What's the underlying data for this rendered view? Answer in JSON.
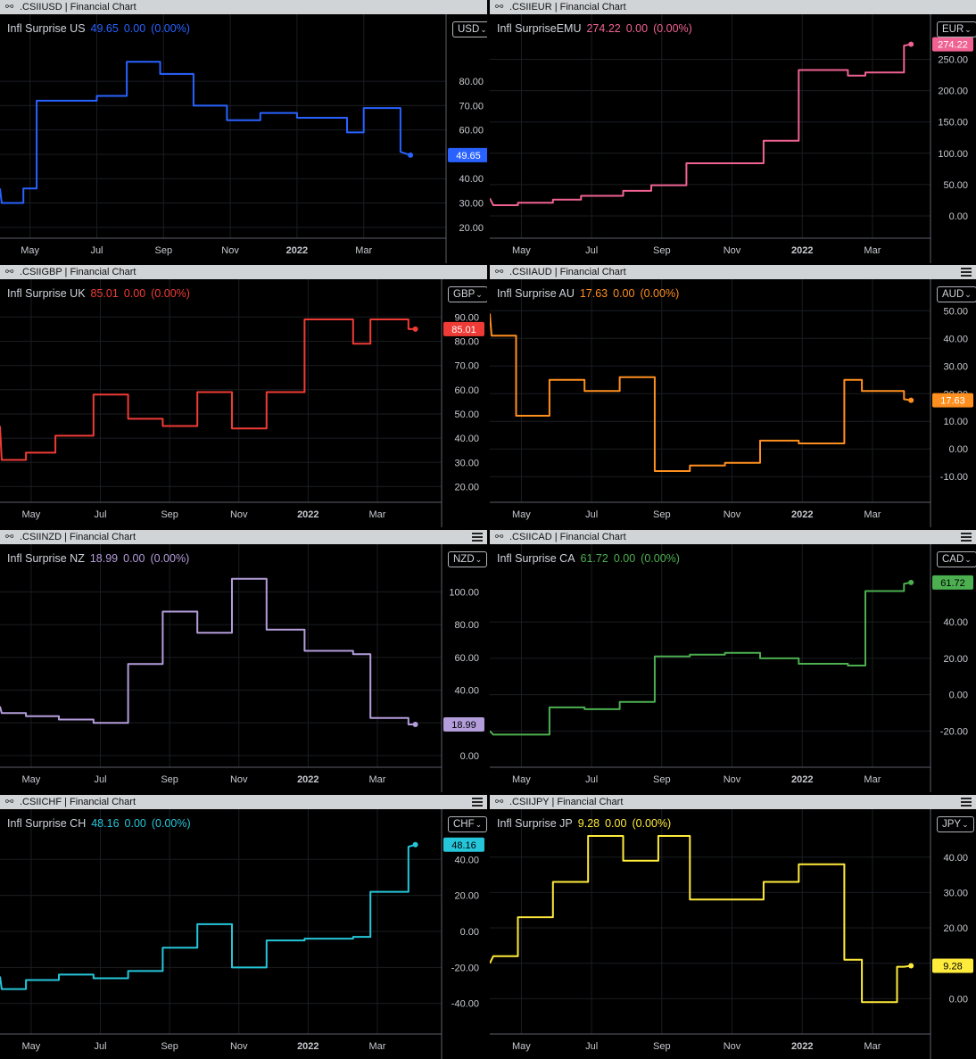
{
  "panels": [
    {
      "id": "usd",
      "title": ".CSIIUSD | Financial Chart",
      "menu": false,
      "legend": {
        "name": "Infl Surprise US",
        "last": "49.65",
        "change": "0.00",
        "pct": "(0.00%)"
      },
      "currency": "USD",
      "color": "#2962ff",
      "badge_text_color": "#ffffff",
      "chart_data": {
        "type": "line",
        "title": "Infl Surprise US",
        "yticks": [
          20,
          30,
          40,
          50,
          60,
          70,
          80
        ],
        "ylim": [
          17,
          98
        ],
        "xticks": [
          {
            "x": 1,
            "label": "May"
          },
          {
            "x": 3,
            "label": "Jul"
          },
          {
            "x": 5,
            "label": "Sep"
          },
          {
            "x": 7,
            "label": "Nov"
          },
          {
            "x": 9,
            "label": "2022"
          },
          {
            "x": 11,
            "label": "Mar"
          }
        ],
        "xlim": [
          0.1,
          13.2
        ],
        "last": 49.65,
        "x": [
          0.1,
          0.15,
          0.8,
          0.8,
          1.2,
          1.2,
          1.9,
          3.0,
          3.0,
          3.9,
          3.9,
          4.9,
          4.9,
          5.9,
          5.9,
          6.9,
          6.9,
          7.9,
          7.9,
          9.0,
          9.0,
          10.5,
          10.5,
          11.0,
          11.0,
          12.1,
          12.1,
          12.4
        ],
        "y": [
          36,
          30,
          30,
          36,
          36,
          72,
          72,
          72,
          74,
          74,
          88,
          88,
          83,
          83,
          70,
          70,
          64,
          64,
          67,
          67,
          65,
          65,
          59,
          59,
          69,
          69,
          51,
          49.65
        ]
      }
    },
    {
      "id": "eur",
      "title": ".CSIIEUR | Financial Chart",
      "menu": false,
      "legend": {
        "name": "Infl SurpriseEMU",
        "last": "274.22",
        "change": "0.00",
        "pct": "(0.00%)"
      },
      "currency": "EUR",
      "color": "#f06292",
      "badge_text_color": "#ffffff",
      "chart_data": {
        "type": "line",
        "title": "Infl SurpriseEMU",
        "yticks": [
          0,
          50,
          100,
          150,
          200,
          250
        ],
        "ylim": [
          -30,
          285
        ],
        "xticks": [
          {
            "x": 1,
            "label": "May"
          },
          {
            "x": 3,
            "label": "Jul"
          },
          {
            "x": 5,
            "label": "Sep"
          },
          {
            "x": 7,
            "label": "Nov"
          },
          {
            "x": 9,
            "label": "2022"
          },
          {
            "x": 11,
            "label": "Mar"
          }
        ],
        "xlim": [
          0.1,
          12.4
        ],
        "last": 274.22,
        "x": [
          0.1,
          0.2,
          0.9,
          0.9,
          1.9,
          1.9,
          2.7,
          2.7,
          3.9,
          3.9,
          4.7,
          4.7,
          5.7,
          5.7,
          7.9,
          7.9,
          8.9,
          8.9,
          10.3,
          10.3,
          10.8,
          10.8,
          11.9,
          11.9,
          12.1
        ],
        "y": [
          28,
          17,
          17,
          21,
          21,
          26,
          26,
          32,
          32,
          40,
          40,
          49,
          49,
          84,
          84,
          120,
          120,
          233,
          233,
          224,
          224,
          229,
          229,
          272,
          274.22
        ]
      }
    },
    {
      "id": "gbp",
      "title": ".CSIIGBP | Financial Chart",
      "menu": false,
      "legend": {
        "name": "Infl Surprise UK",
        "last": "85.01",
        "change": "0.00",
        "pct": "(0.00%)"
      },
      "currency": "GBP",
      "color": "#ef3b36",
      "badge_text_color": "#ffffff",
      "chart_data": {
        "type": "line",
        "title": "Infl Surprise UK",
        "yticks": [
          20,
          30,
          40,
          50,
          60,
          70,
          80,
          90
        ],
        "ylim": [
          15,
          96
        ],
        "xticks": [
          {
            "x": 1,
            "label": "May"
          },
          {
            "x": 3,
            "label": "Jul"
          },
          {
            "x": 5,
            "label": "Sep"
          },
          {
            "x": 7,
            "label": "Nov"
          },
          {
            "x": 9,
            "label": "2022"
          },
          {
            "x": 11,
            "label": "Mar"
          }
        ],
        "xlim": [
          0.1,
          12.6
        ],
        "last": 85.01,
        "x": [
          0.1,
          0.15,
          0.85,
          0.85,
          1.7,
          1.7,
          2.8,
          2.8,
          3.8,
          3.8,
          4.8,
          4.8,
          5.8,
          5.8,
          6.8,
          6.8,
          7.8,
          7.8,
          8.9,
          8.9,
          10.3,
          10.3,
          10.8,
          10.8,
          11.9,
          11.9,
          12.1
        ],
        "y": [
          45,
          31,
          31,
          34,
          34,
          41,
          41,
          58,
          58,
          48,
          48,
          45,
          45,
          59,
          59,
          44,
          44,
          59,
          59,
          89,
          89,
          79,
          79,
          89,
          89,
          85,
          85.01
        ]
      }
    },
    {
      "id": "aud",
      "title": ".CSIIAUD | Financial Chart",
      "menu": true,
      "legend": {
        "name": "Infl Surprise AU",
        "last": "17.63",
        "change": "0.00",
        "pct": "(0.00%)"
      },
      "currency": "AUD",
      "color": "#ff8f1f",
      "badge_text_color": "#ffffff",
      "chart_data": {
        "type": "line",
        "title": "Infl Surprise AU",
        "yticks": [
          -10,
          0,
          10,
          20,
          30,
          40,
          50
        ],
        "ylim": [
          -18,
          53
        ],
        "xticks": [
          {
            "x": 1,
            "label": "May"
          },
          {
            "x": 3,
            "label": "Jul"
          },
          {
            "x": 5,
            "label": "Sep"
          },
          {
            "x": 7,
            "label": "Nov"
          },
          {
            "x": 9,
            "label": "2022"
          },
          {
            "x": 11,
            "label": "Mar"
          }
        ],
        "xlim": [
          0.1,
          12.4
        ],
        "last": 17.63,
        "x": [
          0.1,
          0.15,
          0.85,
          0.85,
          1.8,
          1.8,
          2.8,
          2.8,
          3.8,
          3.8,
          4.8,
          4.8,
          5.8,
          5.8,
          6.8,
          6.8,
          7.8,
          7.8,
          8.9,
          8.9,
          10.2,
          10.2,
          10.7,
          10.7,
          11.9,
          11.9,
          12.1
        ],
        "y": [
          49,
          41,
          41,
          12,
          12,
          25,
          25,
          21,
          21,
          26,
          26,
          -8,
          -8,
          -6,
          -6,
          -5,
          -5,
          3,
          3,
          2,
          2,
          25,
          25,
          21,
          21,
          18,
          17.63
        ]
      }
    },
    {
      "id": "nzd",
      "title": ".CSIINZD | Financial Chart",
      "menu": true,
      "legend": {
        "name": "Infl Surprise NZ",
        "last": "18.99",
        "change": "0.00",
        "pct": "(0.00%)"
      },
      "currency": "NZD",
      "color": "#b39ddb",
      "badge_text_color": "#000000",
      "chart_data": {
        "type": "line",
        "title": "Infl Surprise NZ",
        "yticks": [
          0,
          20,
          40,
          60,
          80,
          100
        ],
        "ylim": [
          -5,
          115
        ],
        "xticks": [
          {
            "x": 1,
            "label": "May"
          },
          {
            "x": 3,
            "label": "Jul"
          },
          {
            "x": 5,
            "label": "Sep"
          },
          {
            "x": 7,
            "label": "Nov"
          },
          {
            "x": 9,
            "label": "2022"
          },
          {
            "x": 11,
            "label": "Mar"
          }
        ],
        "xlim": [
          0.1,
          12.6
        ],
        "last": 18.99,
        "x": [
          0.1,
          0.15,
          0.85,
          0.85,
          1.8,
          1.8,
          2.8,
          2.8,
          3.8,
          3.8,
          4.8,
          4.8,
          5.8,
          5.8,
          6.8,
          6.8,
          7.8,
          7.8,
          8.9,
          8.9,
          10.3,
          10.3,
          10.8,
          10.8,
          11.9,
          11.9,
          12.1
        ],
        "y": [
          30,
          26,
          26,
          24,
          24,
          22,
          22,
          20,
          20,
          56,
          56,
          88,
          88,
          75,
          75,
          108,
          108,
          77,
          77,
          64,
          64,
          62,
          62,
          23,
          23,
          19,
          18.99
        ]
      }
    },
    {
      "id": "cad",
      "title": ".CSIICAD | Financial Chart",
      "menu": true,
      "legend": {
        "name": "Infl Surprise CA",
        "last": "61.72",
        "change": "0.00",
        "pct": "(0.00%)"
      },
      "currency": "CAD",
      "color": "#4caf50",
      "badge_text_color": "#000000",
      "chart_data": {
        "type": "line",
        "title": "Infl Surprise CA",
        "yticks": [
          -20,
          0,
          20,
          40
        ],
        "ylim": [
          -38,
          70
        ],
        "xticks": [
          {
            "x": 1,
            "label": "May"
          },
          {
            "x": 3,
            "label": "Jul"
          },
          {
            "x": 5,
            "label": "Sep"
          },
          {
            "x": 7,
            "label": "Nov"
          },
          {
            "x": 9,
            "label": "2022"
          },
          {
            "x": 11,
            "label": "Mar"
          }
        ],
        "xlim": [
          0.1,
          12.4
        ],
        "last": 61.72,
        "x": [
          0.1,
          0.2,
          1.8,
          1.8,
          2.8,
          2.8,
          3.8,
          3.8,
          4.8,
          4.8,
          5.8,
          5.8,
          6.8,
          6.8,
          7.8,
          7.8,
          8.9,
          8.9,
          10.3,
          10.3,
          10.8,
          10.8,
          11.9,
          11.9,
          12.1
        ],
        "y": [
          -20,
          -22,
          -22,
          -7,
          -7,
          -8,
          -8,
          -4,
          -4,
          21,
          21,
          22,
          22,
          23,
          23,
          20,
          20,
          17,
          17,
          16,
          16,
          57,
          57,
          61,
          61.72
        ]
      }
    },
    {
      "id": "chf",
      "title": ".CSIICHF | Financial Chart",
      "menu": true,
      "legend": {
        "name": "Infl Surprise CH",
        "last": "48.16",
        "change": "0.00",
        "pct": "(0.00%)"
      },
      "currency": "CHF",
      "color": "#26c6da",
      "badge_text_color": "#000000",
      "chart_data": {
        "type": "line",
        "title": "Infl Surprise CH",
        "yticks": [
          -40,
          -20,
          0,
          20,
          40
        ],
        "ylim": [
          -55,
          55
        ],
        "xticks": [
          {
            "x": 1,
            "label": "May"
          },
          {
            "x": 3,
            "label": "Jul"
          },
          {
            "x": 5,
            "label": "Sep"
          },
          {
            "x": 7,
            "label": "Nov"
          },
          {
            "x": 9,
            "label": "2022"
          },
          {
            "x": 11,
            "label": "Mar"
          }
        ],
        "xlim": [
          0.1,
          12.6
        ],
        "last": 48.16,
        "x": [
          0.1,
          0.15,
          0.85,
          0.85,
          1.8,
          1.8,
          2.8,
          2.8,
          3.8,
          3.8,
          4.8,
          4.8,
          5.8,
          5.8,
          6.8,
          6.8,
          7.8,
          7.8,
          8.9,
          8.9,
          10.3,
          10.3,
          10.8,
          10.8,
          11.9,
          11.9,
          12.1
        ],
        "y": [
          -25,
          -32,
          -32,
          -27,
          -27,
          -24,
          -24,
          -26,
          -26,
          -22,
          -22,
          -9,
          -9,
          4,
          4,
          -20,
          -20,
          -5,
          -5,
          -4,
          -4,
          -3,
          -3,
          22,
          22,
          47,
          48.16
        ]
      }
    },
    {
      "id": "jpy",
      "title": ".CSIIJPY | Financial Chart",
      "menu": true,
      "legend": {
        "name": "Infl Surprise JP",
        "last": "9.28",
        "change": "0.00",
        "pct": "(0.00%)"
      },
      "currency": "JPY",
      "color": "#ffeb3b",
      "badge_text_color": "#000000",
      "chart_data": {
        "type": "line",
        "title": "Infl Surprise JP",
        "yticks": [
          0,
          10,
          20,
          30,
          40
        ],
        "ylim": [
          -9,
          47
        ],
        "xticks": [
          {
            "x": 1,
            "label": "May"
          },
          {
            "x": 3,
            "label": "Jul"
          },
          {
            "x": 5,
            "label": "Sep"
          },
          {
            "x": 7,
            "label": "Nov"
          },
          {
            "x": 9,
            "label": "2022"
          },
          {
            "x": 11,
            "label": "Mar"
          }
        ],
        "xlim": [
          0.1,
          12.4
        ],
        "last": 9.28,
        "x": [
          0.1,
          0.2,
          0.9,
          0.9,
          1.9,
          1.9,
          2.9,
          2.9,
          3.9,
          3.9,
          4.9,
          4.9,
          5.8,
          5.8,
          6.9,
          6.9,
          7.9,
          7.9,
          8.9,
          8.9,
          10.2,
          10.2,
          10.7,
          10.7,
          11.7,
          11.7,
          11.9,
          12.1
        ],
        "y": [
          10,
          12,
          12,
          23,
          23,
          33,
          33,
          46,
          46,
          39,
          39,
          46,
          46,
          28,
          28,
          28,
          28,
          33,
          33,
          38,
          38,
          11,
          11,
          -1,
          -1,
          9,
          9,
          9.28
        ]
      }
    }
  ]
}
